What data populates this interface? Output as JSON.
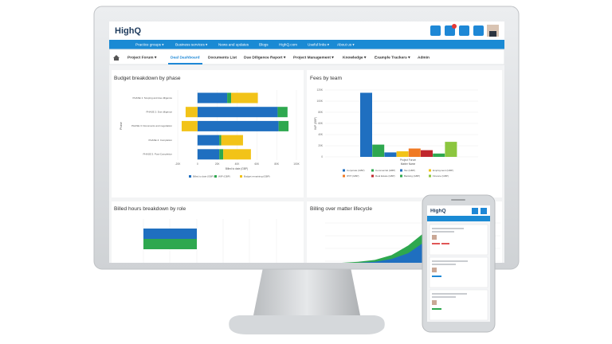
{
  "header": {
    "logo": "HighQ",
    "nav": [
      "Practice groups ▾",
      "Business services ▾",
      "News and updates",
      "Blogs",
      "HighQ.com",
      "Useful links ▾",
      "About us ▾"
    ]
  },
  "breadcrumb": [
    "Project Forum ▾",
    "Deal Dashboard",
    "Documents List",
    "Due Diligence Report ▾",
    "Project Management ▾",
    "Knowledge ▾",
    "Example Trackers ▾",
    "Admin"
  ],
  "panels": [
    {
      "title": "Budget breakdown by phase",
      "chart": {
        "type": "hbar-stacked",
        "categories": [
          "PHASE 1: Scoping and due diligence",
          "PHASE 2: Due diligence",
          "PHASE 3: Documents and negotiation",
          "PHASE 4: Completion",
          "PHASE 5: Post-Completion"
        ],
        "series": [
          {
            "name": "Billed to date (GBP)",
            "color": "#1f6fc0",
            "values": [
              30000,
              81000,
              82000,
              22000,
              22000
            ]
          },
          {
            "name": "WIP (GBP)",
            "color": "#2ea84f",
            "values": [
              4000,
              10000,
              10000,
              2000,
              4000
            ]
          },
          {
            "name": "Budget remaining (GBP)",
            "color": "#f2c318",
            "values": [
              27000,
              -12000,
              -16000,
              22000,
              28000
            ]
          }
        ],
        "xlim": [
          -20000,
          100000
        ],
        "xticks": [
          {
            "value": -20000,
            "label": "-20K"
          },
          0,
          {
            "value": 20000,
            "label": "20K"
          },
          {
            "value": 40000,
            "label": "40K"
          },
          {
            "value": 60000,
            "label": "60K"
          },
          {
            "value": 80000,
            "label": "80K"
          },
          {
            "value": 100000,
            "label": "100K"
          }
        ],
        "xlabel": "Billed to date (GBP)",
        "ylabel": "Phase",
        "grid": true
      }
    },
    {
      "title": "Fees by team",
      "chart": {
        "type": "bar",
        "categories": [
          "Project Forum"
        ],
        "xlabel": "Matter Name",
        "ylabel": "WIP (GBP)",
        "series": [
          {
            "name": "Corporate (GBP)",
            "color": "#1f6fc0",
            "values": [
              115000
            ]
          },
          {
            "name": "Commercial (GBP)",
            "color": "#2ea84f",
            "values": [
              22000
            ]
          },
          {
            "name": "Tax (GBP)",
            "color": "#1f6fc0",
            "values": [
              8000
            ]
          },
          {
            "name": "Employment (GBP)",
            "color": "#f2c318",
            "values": [
              10000
            ]
          },
          {
            "name": "IP/IT (GBP)",
            "color": "#f07a23",
            "values": [
              15000
            ]
          },
          {
            "name": "Real Estate (GBP)",
            "color": "#c0272d",
            "values": [
              12000
            ]
          },
          {
            "name": "Banking (GBP)",
            "color": "#2ea84f",
            "values": [
              6000
            ]
          },
          {
            "name": "Finance (GBP)",
            "color": "#8cc63f",
            "values": [
              27000
            ]
          }
        ],
        "ylim": [
          0,
          120000
        ],
        "yticks": [
          0,
          {
            "value": 20000,
            "label": "20K"
          },
          {
            "value": 40000,
            "label": "40K"
          },
          {
            "value": 60000,
            "label": "60K"
          },
          {
            "value": 80000,
            "label": "80K"
          },
          {
            "value": 100000,
            "label": "100K"
          },
          {
            "value": 120000,
            "label": "120K"
          }
        ],
        "grid": true
      }
    },
    {
      "title": "Billed hours breakdown by role",
      "chart": {
        "type": "hbar",
        "series": [
          {
            "color": "#1f6fc0",
            "values": [
              100
            ]
          },
          {
            "color": "#2ea84f",
            "values": [
              100
            ]
          }
        ]
      }
    },
    {
      "title": "Billing over matter lifecycle",
      "chart": {
        "type": "area",
        "series": [
          {
            "color": "#2ea84f",
            "values": [
              0,
              0,
              1,
              3,
              8,
              18,
              32
            ]
          },
          {
            "color": "#1f6fc0",
            "values": [
              0,
              0,
              0,
              1,
              4,
              10,
              22
            ]
          }
        ]
      }
    }
  ],
  "phone": {
    "logo": "HighQ"
  }
}
